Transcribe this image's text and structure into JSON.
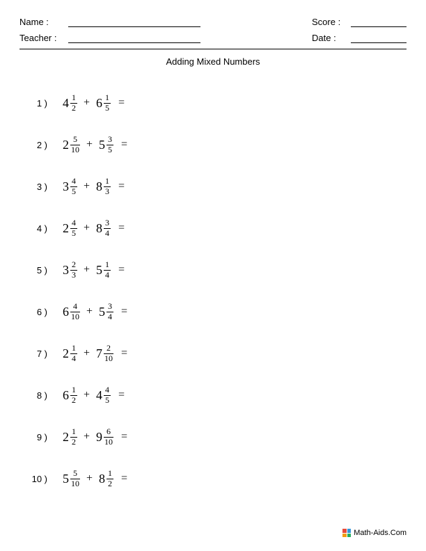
{
  "header": {
    "name_label": "Name :",
    "teacher_label": "Teacher :",
    "score_label": "Score :",
    "date_label": "Date :"
  },
  "title": "Adding Mixed Numbers",
  "problems": [
    {
      "n": "1 )",
      "a_whole": "4",
      "a_num": "1",
      "a_den": "2",
      "b_whole": "6",
      "b_num": "1",
      "b_den": "5"
    },
    {
      "n": "2 )",
      "a_whole": "2",
      "a_num": "5",
      "a_den": "10",
      "b_whole": "5",
      "b_num": "3",
      "b_den": "5"
    },
    {
      "n": "3 )",
      "a_whole": "3",
      "a_num": "4",
      "a_den": "5",
      "b_whole": "8",
      "b_num": "1",
      "b_den": "3"
    },
    {
      "n": "4 )",
      "a_whole": "2",
      "a_num": "4",
      "a_den": "5",
      "b_whole": "8",
      "b_num": "3",
      "b_den": "4"
    },
    {
      "n": "5 )",
      "a_whole": "3",
      "a_num": "2",
      "a_den": "3",
      "b_whole": "5",
      "b_num": "1",
      "b_den": "4"
    },
    {
      "n": "6 )",
      "a_whole": "6",
      "a_num": "4",
      "a_den": "10",
      "b_whole": "5",
      "b_num": "3",
      "b_den": "4"
    },
    {
      "n": "7 )",
      "a_whole": "2",
      "a_num": "1",
      "a_den": "4",
      "b_whole": "7",
      "b_num": "2",
      "b_den": "10"
    },
    {
      "n": "8 )",
      "a_whole": "6",
      "a_num": "1",
      "a_den": "2",
      "b_whole": "4",
      "b_num": "4",
      "b_den": "5"
    },
    {
      "n": "9 )",
      "a_whole": "2",
      "a_num": "1",
      "a_den": "2",
      "b_whole": "9",
      "b_num": "6",
      "b_den": "10"
    },
    {
      "n": "10 )",
      "a_whole": "5",
      "a_num": "5",
      "a_den": "10",
      "b_whole": "8",
      "b_num": "1",
      "b_den": "2"
    }
  ],
  "operator": "+",
  "equals": "=",
  "footer": "Math-Aids.Com",
  "colors": {
    "text": "#000000",
    "background": "#ffffff"
  }
}
